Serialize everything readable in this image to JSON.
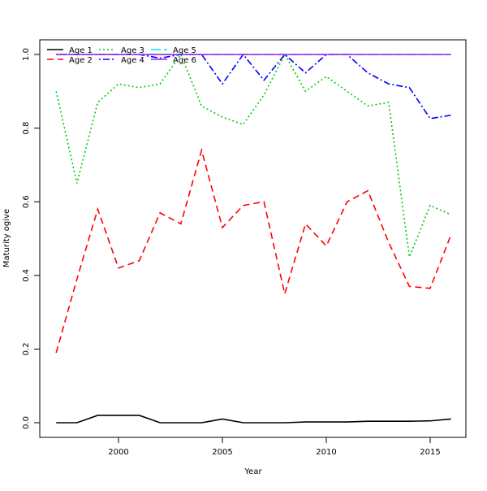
{
  "chart_data": {
    "type": "line",
    "title": "",
    "xlabel": "Year",
    "ylabel": "Maturity ogive",
    "xlim": [
      1996.2,
      2016.7
    ],
    "ylim": [
      -0.04,
      1.04
    ],
    "xticks": [
      2000,
      2005,
      2010,
      2015
    ],
    "yticks": [
      "0.0",
      "0.2",
      "0.4",
      "0.6",
      "0.8",
      "1.0"
    ],
    "grid": false,
    "legend_position": "top-left",
    "x": [
      1997,
      1998,
      1999,
      2000,
      2001,
      2002,
      2003,
      2004,
      2005,
      2006,
      2007,
      2008,
      2009,
      2010,
      2011,
      2012,
      2013,
      2014,
      2015,
      2016
    ],
    "series": [
      {
        "name": "Age 1",
        "color": "#000000",
        "dash": "",
        "values": [
          0,
          0,
          0.02,
          0.02,
          0.02,
          0,
          0,
          0,
          0.01,
          0,
          0,
          0,
          0.002,
          0.002,
          0.002,
          0.004,
          0.004,
          0.004,
          0.005,
          0.01
        ]
      },
      {
        "name": "Age 2",
        "color": "#ff0000",
        "dash": "8,5",
        "values": [
          0.19,
          0.39,
          0.58,
          0.42,
          0.44,
          0.57,
          0.54,
          0.74,
          0.53,
          0.59,
          0.6,
          0.35,
          0.54,
          0.48,
          0.6,
          0.63,
          0.49,
          0.37,
          0.365,
          0.51
        ]
      },
      {
        "name": "Age 3",
        "color": "#00cd00",
        "dash": "2,3",
        "values": [
          0.9,
          0.65,
          0.87,
          0.92,
          0.91,
          0.92,
          1.0,
          0.86,
          0.83,
          0.81,
          0.89,
          1.0,
          0.9,
          0.94,
          0.9,
          0.86,
          0.87,
          0.45,
          0.59,
          0.565
        ]
      },
      {
        "name": "Age 4",
        "color": "#0000ff",
        "dash": "2,3,8,3",
        "values": [
          1,
          1,
          1,
          1,
          1,
          0.99,
          1,
          1,
          0.92,
          1,
          0.93,
          1,
          0.95,
          1,
          1,
          0.95,
          0.92,
          0.91,
          0.826,
          0.835
        ]
      },
      {
        "name": "Age 5",
        "color": "#00e5ee",
        "dash": "12,4",
        "values": [
          1,
          1,
          1,
          1,
          1,
          1,
          1,
          1,
          1,
          1,
          1,
          1,
          1,
          1,
          1,
          1,
          1,
          1,
          1,
          1
        ]
      },
      {
        "name": "Age 6",
        "color": "#a020f0",
        "dash": "",
        "values": [
          1,
          1,
          1,
          1,
          1,
          1,
          1,
          1,
          1,
          1,
          1,
          1,
          1,
          1,
          1,
          1,
          1,
          1,
          1,
          1
        ]
      }
    ]
  }
}
